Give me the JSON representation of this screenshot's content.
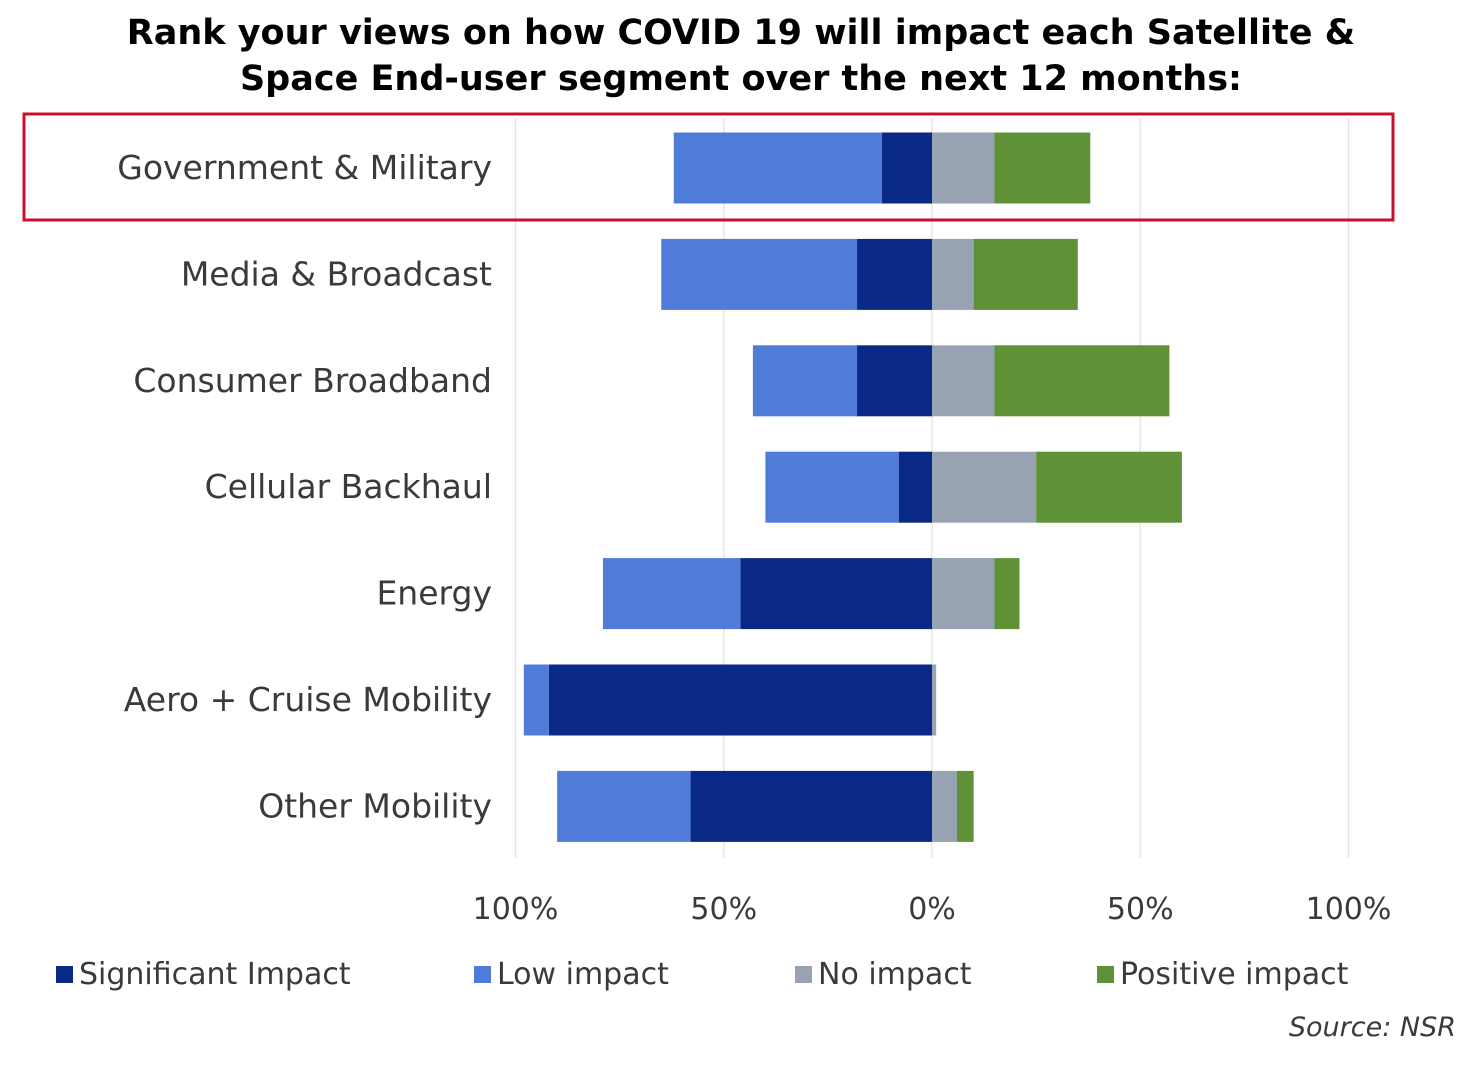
{
  "title_lines": [
    "Rank your views on how COVID 19 will impact each Satellite &",
    "Space End-user segment over the next 12 months:"
  ],
  "source": "Source: NSR",
  "highlighted_category": "Government & Military",
  "colors": {
    "significant": "#0a2885",
    "low": "#4f7bd9",
    "none": "#97a3b3",
    "positive": "#5f9136",
    "highlight_border": "#c8102e",
    "grid": "#e6e6e6"
  },
  "chart_data": {
    "type": "bar",
    "orientation": "horizontal",
    "stacking": "diverging",
    "categories": [
      "Government & Military",
      "Media & Broadcast",
      "Consumer Broadband",
      "Cellular Backhaul",
      "Energy",
      "Aero + Cruise Mobility",
      "Other Mobility"
    ],
    "series": [
      {
        "name": "Significant Impact",
        "side": "negative",
        "values": [
          12,
          18,
          18,
          8,
          46,
          92,
          58
        ]
      },
      {
        "name": "Low impact",
        "side": "negative",
        "values": [
          50,
          47,
          25,
          32,
          33,
          6,
          32
        ]
      },
      {
        "name": "No impact",
        "side": "positive",
        "values": [
          15,
          10,
          15,
          25,
          15,
          1,
          6
        ]
      },
      {
        "name": "Positive impact",
        "side": "positive",
        "values": [
          23,
          25,
          42,
          35,
          6,
          0,
          4
        ]
      }
    ],
    "xlim": [
      -100,
      100
    ],
    "xticks": [
      -100,
      -50,
      0,
      50,
      100
    ],
    "xtick_labels": [
      "100%",
      "50%",
      "0%",
      "50%",
      "100%"
    ],
    "grid": true,
    "legend_position": "bottom"
  }
}
